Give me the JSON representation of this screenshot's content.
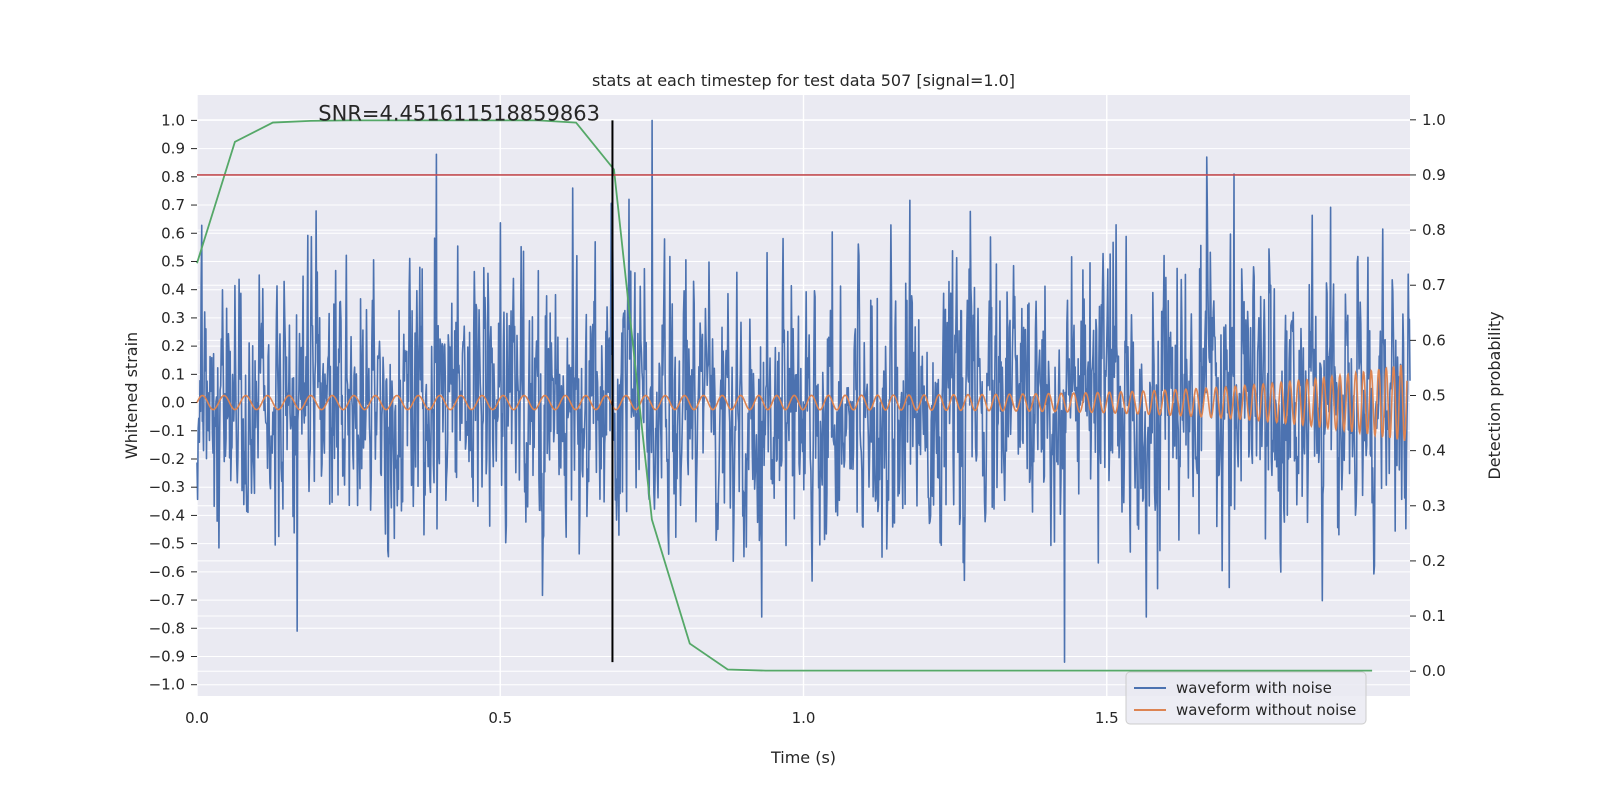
{
  "chart_data": {
    "type": "line",
    "title": "stats at each timestep for test data 507 [signal=1.0]",
    "xlabel": "Time (s)",
    "ylabel": "Whitened strain",
    "ylabel_right": "Detection probability",
    "xlim": [
      0.0,
      2.0
    ],
    "ylim": [
      -1.04,
      1.09
    ],
    "ylim_right": [
      -0.045,
      1.045
    ],
    "x_ticks": [
      "0.0",
      "0.5",
      "1.0",
      "1.5"
    ],
    "x_tick_values": [
      0.0,
      0.5,
      1.0,
      1.5
    ],
    "y_ticks": [
      "1.0",
      "0.9",
      "0.8",
      "0.7",
      "0.6",
      "0.5",
      "0.4",
      "0.3",
      "0.2",
      "0.1",
      "0.0",
      "−0.1",
      "−0.2",
      "−0.3",
      "−0.4",
      "−0.5",
      "−0.6",
      "−0.7",
      "−0.8",
      "−0.9",
      "−1.0"
    ],
    "y_tick_values": [
      1.0,
      0.9,
      0.8,
      0.7,
      0.6,
      0.5,
      0.4,
      0.3,
      0.2,
      0.1,
      0.0,
      -0.1,
      -0.2,
      -0.3,
      -0.4,
      -0.5,
      -0.6,
      -0.7,
      -0.8,
      -0.9,
      -1.0
    ],
    "y_ticks_right": [
      "1.0",
      "0.9",
      "0.8",
      "0.7",
      "0.6",
      "0.5",
      "0.4",
      "0.3",
      "0.2",
      "0.1",
      "0.0"
    ],
    "y_tick_values_right": [
      1.0,
      0.9,
      0.8,
      0.7,
      0.6,
      0.5,
      0.4,
      0.3,
      0.2,
      0.1,
      0.0
    ],
    "annotation": "SNR=4.451611518859863",
    "annotation_pos": {
      "x": 0.2,
      "y": 1.0
    },
    "threshold": {
      "value": 0.9,
      "axis": "right",
      "color": "#c44e52"
    },
    "vertical_marker": {
      "x": 0.685,
      "y_range": [
        -0.92,
        1.0
      ],
      "color": "#000000"
    },
    "noise_waveform": {
      "name": "waveform with noise",
      "color": "#4c72b0",
      "n_samples": 2048,
      "amplitude_std": 0.24,
      "spikes": [
        {
          "x": 0.165,
          "y": -0.81
        },
        {
          "x": 0.395,
          "y": 0.88
        },
        {
          "x": 0.75,
          "y": 1.0
        },
        {
          "x": 1.43,
          "y": -0.92
        },
        {
          "x": 1.665,
          "y": 0.87
        },
        {
          "x": 1.71,
          "y": 0.81
        }
      ]
    },
    "clean_waveform": {
      "name": "waveform without noise",
      "color": "#dd8452",
      "base_amplitude": 0.025,
      "final_amplitude": 0.14,
      "base_frequency": 28,
      "final_frequency": 85
    },
    "detection_probability": {
      "name": "detection probability",
      "color": "#55a868",
      "axis": "right",
      "x": [
        0.0,
        0.0625,
        0.125,
        0.1875,
        0.25,
        0.3125,
        0.375,
        0.4375,
        0.5,
        0.5625,
        0.625,
        0.6875,
        0.75,
        0.8125,
        0.875,
        0.9375,
        1.0,
        1.0625,
        1.125,
        1.1875,
        1.25,
        1.3125,
        1.375,
        1.4375,
        1.5,
        1.5625,
        1.625,
        1.6875,
        1.75,
        1.8125,
        1.875,
        1.9375
      ],
      "y": [
        0.74,
        0.96,
        0.995,
        0.998,
        0.999,
        0.999,
        0.999,
        0.999,
        0.999,
        0.999,
        0.995,
        0.91,
        0.275,
        0.05,
        0.003,
        0.001,
        0.001,
        0.001,
        0.001,
        0.001,
        0.001,
        0.001,
        0.001,
        0.001,
        0.001,
        0.001,
        0.001,
        0.001,
        0.001,
        0.001,
        0.001,
        0.001
      ]
    },
    "legend": {
      "position": "lower-right",
      "entries": [
        {
          "label": "waveform with noise",
          "color": "#4c72b0"
        },
        {
          "label": "waveform without noise",
          "color": "#dd8452"
        }
      ]
    },
    "style": {
      "background": "#eaeaf2",
      "grid": true,
      "grid_color": "#ffffff"
    }
  }
}
